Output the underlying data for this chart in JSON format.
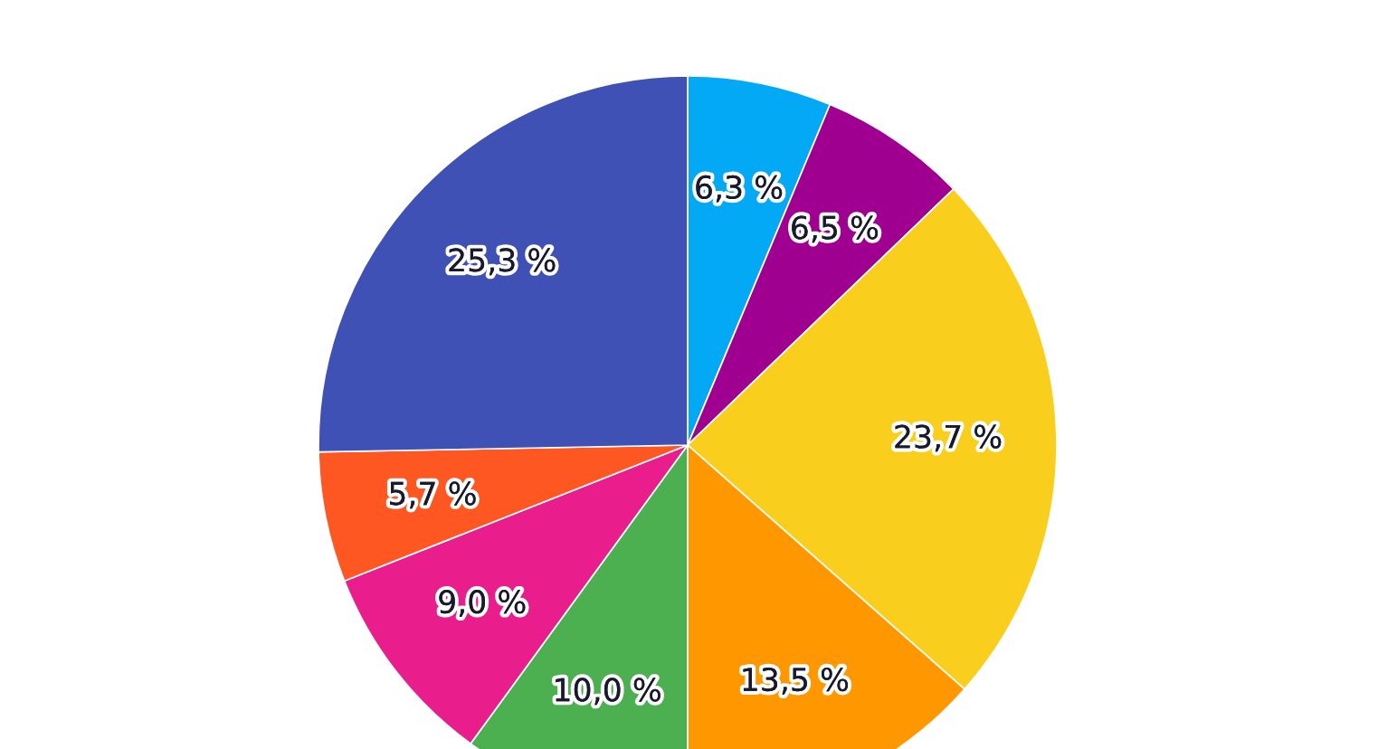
{
  "chart_data": {
    "type": "pie",
    "categories": [
      null,
      null,
      null,
      null,
      null,
      null,
      null,
      null
    ],
    "values": [
      6.3,
      6.5,
      23.7,
      13.5,
      10.0,
      9.0,
      5.7,
      25.3
    ],
    "colors": [
      "#03a9f4",
      "#a0008f",
      "#f9ce1d",
      "#ff9800",
      "#4caf50",
      "#e91e8c",
      "#ff5722",
      "#3f51b5"
    ],
    "value_labels": [
      "6,3 %",
      "6,5 %",
      "23,7 %",
      "13,5 %",
      "10,0 %",
      "9,0 %",
      "5,7 %",
      "25,3 %"
    ]
  }
}
